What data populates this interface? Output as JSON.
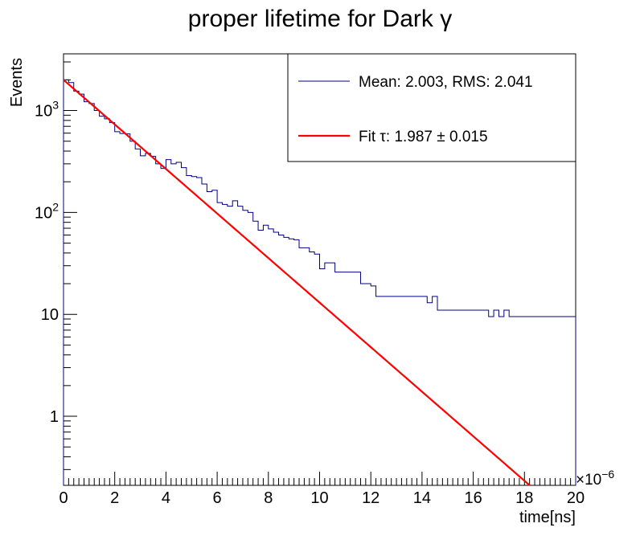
{
  "chart_data": {
    "type": "histogram",
    "title": "proper lifetime for Dark γ",
    "xlabel": "time[ns]",
    "ylabel": "Events",
    "x_exponent_label": "×10",
    "x_exponent_power": "−6",
    "xlim": [
      0,
      20
    ],
    "ylim": [
      0.21,
      3600
    ],
    "yscale": "log",
    "grid": false,
    "legend_position": "top-right",
    "x_ticks": [
      {
        "value": 0,
        "label": "0"
      },
      {
        "value": 2,
        "label": "2"
      },
      {
        "value": 4,
        "label": "4"
      },
      {
        "value": 6,
        "label": "6"
      },
      {
        "value": 8,
        "label": "8"
      },
      {
        "value": 10,
        "label": "10"
      },
      {
        "value": 12,
        "label": "12"
      },
      {
        "value": 14,
        "label": "14"
      },
      {
        "value": 16,
        "label": "16"
      },
      {
        "value": 18,
        "label": "18"
      },
      {
        "value": 20,
        "label": "20"
      }
    ],
    "y_ticks": [
      {
        "value": 1,
        "label": "1"
      },
      {
        "value": 10,
        "label": "10"
      },
      {
        "value": 100,
        "label": "10",
        "sup": "2"
      },
      {
        "value": 1000,
        "label": "10",
        "sup": "3"
      }
    ],
    "legend": [
      {
        "label": "Mean: 2.003, RMS: 2.041",
        "color": "#000080",
        "width": 1
      },
      {
        "label": "Fit τ: 1.987 ± 0.015",
        "color": "#ff0000",
        "width": 2
      }
    ],
    "histogram": {
      "name": "Mean: 2.003, RMS: 2.041",
      "color": "#000080",
      "bin_width": 0.2,
      "bin_start": 0,
      "counts": [
        2000,
        1880,
        1550,
        1450,
        1220,
        1170,
        1000,
        880,
        830,
        760,
        620,
        595,
        590,
        500,
        420,
        360,
        380,
        355,
        300,
        270,
        330,
        300,
        310,
        275,
        230,
        225,
        220,
        190,
        160,
        165,
        125,
        120,
        115,
        130,
        115,
        105,
        100,
        82,
        67,
        75,
        69,
        64,
        60,
        57,
        55,
        54,
        45,
        45,
        41,
        39,
        28,
        32,
        32,
        26,
        26,
        26,
        26,
        26,
        20,
        20,
        19,
        15,
        15,
        15,
        15,
        15,
        15,
        15,
        15,
        15,
        15,
        13,
        15,
        11,
        11,
        11,
        11,
        11,
        11,
        11,
        11,
        11,
        11,
        9.5,
        11,
        9.5,
        11,
        9.5,
        9.5,
        9.5,
        9.5,
        9.5,
        9.5,
        9.5,
        9.5,
        9.5,
        9.5,
        9.5,
        9.5,
        9.5
      ]
    },
    "fit": {
      "name": "Fit τ: 1.987 ± 0.015",
      "color": "#ff0000",
      "type": "exponential",
      "amplitude": 2000,
      "tau": 1.987,
      "x_range": [
        0,
        18.2
      ]
    }
  }
}
